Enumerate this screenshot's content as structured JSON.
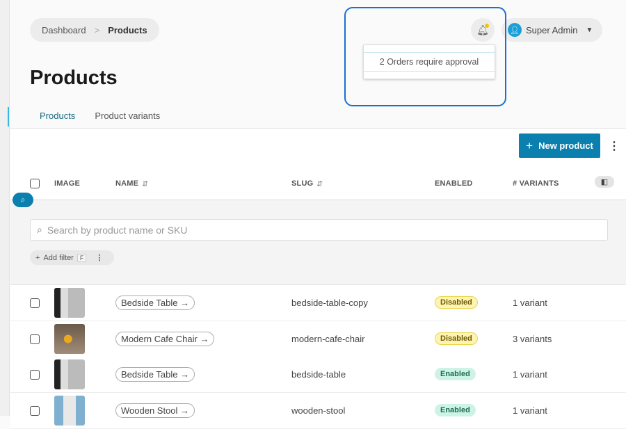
{
  "breadcrumb": {
    "items": [
      "Dashboard",
      "Products"
    ]
  },
  "page": {
    "title": "Products"
  },
  "tabs": [
    {
      "label": "Products",
      "active": true
    },
    {
      "label": "Product variants",
      "active": false
    }
  ],
  "header": {
    "user_name": "Super Admin",
    "notification": "2 Orders require approval"
  },
  "toolbar": {
    "new_product_label": "New product"
  },
  "table": {
    "columns": [
      "IMAGE",
      "NAME",
      "SLUG",
      "ENABLED",
      "# VARIANTS"
    ],
    "rows": [
      {
        "name": "Bedside Table",
        "slug": "bedside-table-copy",
        "status": "Disabled",
        "variants": "1 variant",
        "image": "bedside"
      },
      {
        "name": "Modern Cafe Chair",
        "slug": "modern-cafe-chair",
        "status": "Disabled",
        "variants": "3 variants",
        "image": "chair"
      },
      {
        "name": "Bedside Table",
        "slug": "bedside-table",
        "status": "Enabled",
        "variants": "1 variant",
        "image": "bedside"
      },
      {
        "name": "Wooden Stool",
        "slug": "wooden-stool",
        "status": "Enabled",
        "variants": "1 variant",
        "image": "stool"
      }
    ]
  },
  "filter": {
    "search_placeholder": "Search by product name or SKU",
    "add_filter_label": "Add filter",
    "shortcut": "F"
  },
  "colors": {
    "accent": "#0b7fae",
    "highlight": "#1a6fd0",
    "disabled_badge": "#fdf3b3",
    "enabled_badge": "#ccf3e5"
  }
}
